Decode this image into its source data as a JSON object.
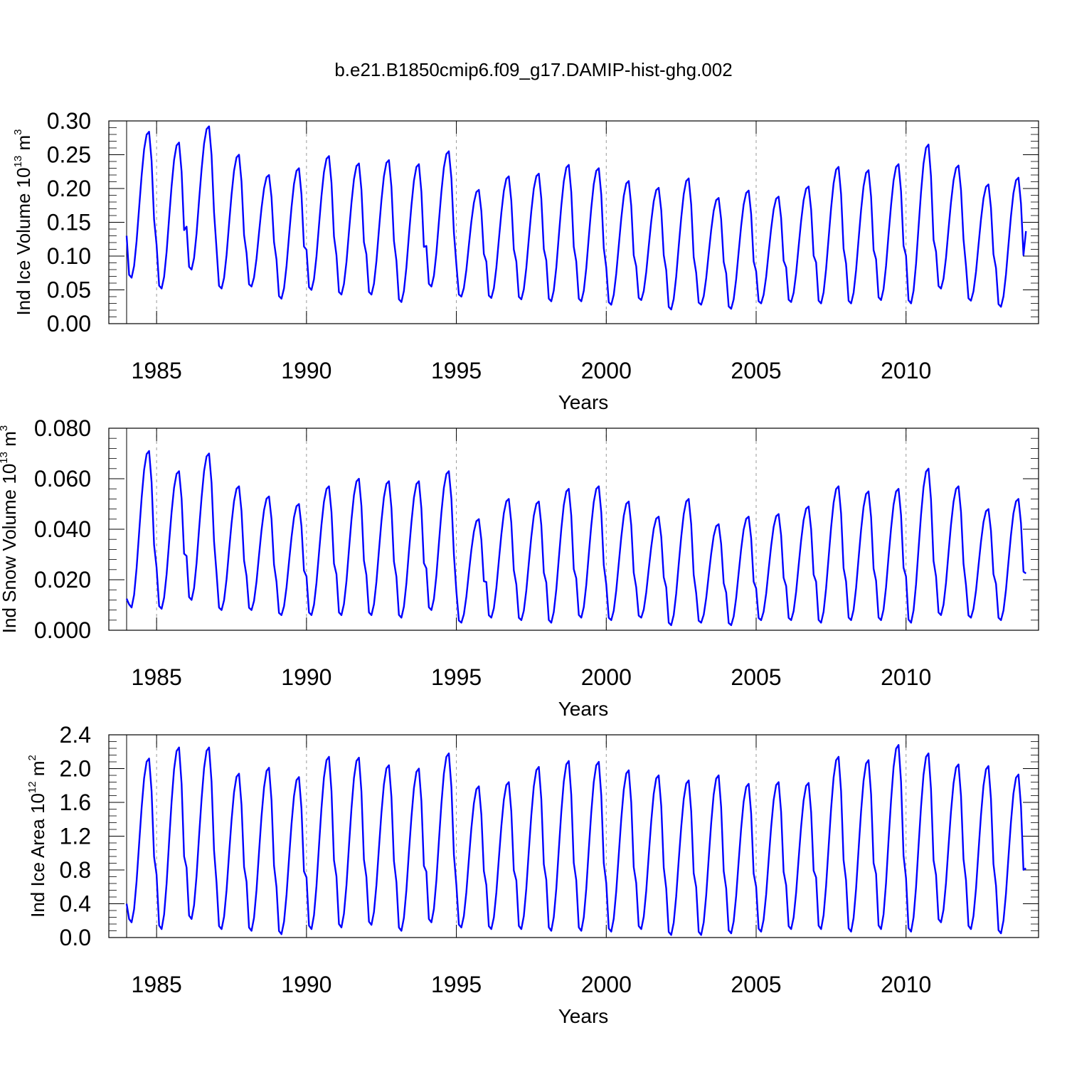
{
  "title": "b.e21.B1850cmip6.f09_g17.DAMIP-hist-ghg.002",
  "colors": {
    "line": "#0000ff",
    "axis": "#000000",
    "ref": "#999999"
  },
  "chart_data": [
    {
      "type": "line",
      "ylabel": {
        "main": "Ind Ice Volume 10",
        "exp": "13",
        "unit": " m",
        "unit_exp": "3"
      },
      "xlabel": "Years",
      "xlim": [
        1984.0,
        2014.42
      ],
      "ylim": [
        0.0,
        0.3
      ],
      "yticks": [
        0.0,
        0.05,
        0.1,
        0.15,
        0.2,
        0.25,
        0.3
      ],
      "ytick_labels": [
        "0.00",
        "0.05",
        "0.10",
        "0.15",
        "0.20",
        "0.25",
        "0.30"
      ],
      "xticks": [
        1985,
        1990,
        1995,
        2000,
        2005,
        2010
      ],
      "xtick_labels": [
        "1985",
        "1990",
        "1995",
        "2000",
        "2005",
        "2010"
      ],
      "ref_lines": [
        1985,
        1990,
        1995,
        2000,
        2005,
        2010
      ],
      "series": [
        {
          "start": 1984.0,
          "step_years": 0.08333,
          "years": [
            1984,
            1985,
            1986,
            1987,
            1988,
            1989,
            1990,
            1991,
            1992,
            1993,
            1994,
            1995,
            1996,
            1997,
            1998,
            1999,
            2000,
            2001,
            2002,
            2003,
            2004,
            2005,
            2006,
            2007,
            2008,
            2009,
            2010,
            2011,
            2012,
            2013
          ],
          "min": [
            0.068,
            0.052,
            0.08,
            0.052,
            0.055,
            0.037,
            0.05,
            0.043,
            0.043,
            0.032,
            0.055,
            0.04,
            0.038,
            0.036,
            0.033,
            0.033,
            0.028,
            0.035,
            0.021,
            0.028,
            0.022,
            0.03,
            0.032,
            0.03,
            0.03,
            0.035,
            0.03,
            0.052,
            0.034,
            0.025
          ],
          "max": [
            0.284,
            0.268,
            0.292,
            0.25,
            0.22,
            0.23,
            0.248,
            0.237,
            0.242,
            0.236,
            0.255,
            0.198,
            0.218,
            0.222,
            0.235,
            0.23,
            0.211,
            0.201,
            0.215,
            0.186,
            0.197,
            0.188,
            0.203,
            0.232,
            0.227,
            0.236,
            0.265,
            0.234,
            0.206,
            0.216
          ],
          "first": 0.13,
          "last": 0.137
        }
      ]
    },
    {
      "type": "line",
      "ylabel": {
        "main": "Ind Snow Volume 10",
        "exp": "13",
        "unit": " m",
        "unit_exp": "3"
      },
      "xlabel": "Years",
      "xlim": [
        1984.0,
        2014.42
      ],
      "ylim": [
        0.0,
        0.08
      ],
      "yticks": [
        0.0,
        0.02,
        0.04,
        0.06,
        0.08
      ],
      "ytick_labels": [
        "0.000",
        "0.020",
        "0.040",
        "0.060",
        "0.080"
      ],
      "xticks": [
        1985,
        1990,
        1995,
        2000,
        2005,
        2010
      ],
      "xtick_labels": [
        "1985",
        "1990",
        "1995",
        "2000",
        "2005",
        "2010"
      ],
      "ref_lines": [
        1985,
        1990,
        1995,
        2000,
        2005,
        2010
      ],
      "series": [
        {
          "start": 1984.0,
          "step_years": 0.08333,
          "years": [
            1984,
            1985,
            1986,
            1987,
            1988,
            1989,
            1990,
            1991,
            1992,
            1993,
            1994,
            1995,
            1996,
            1997,
            1998,
            1999,
            2000,
            2001,
            2002,
            2003,
            2004,
            2005,
            2006,
            2007,
            2008,
            2009,
            2010,
            2011,
            2012,
            2013
          ],
          "min": [
            0.009,
            0.0085,
            0.012,
            0.008,
            0.008,
            0.006,
            0.006,
            0.006,
            0.006,
            0.005,
            0.008,
            0.003,
            0.005,
            0.004,
            0.003,
            0.005,
            0.004,
            0.005,
            0.002,
            0.003,
            0.002,
            0.004,
            0.004,
            0.003,
            0.004,
            0.004,
            0.003,
            0.006,
            0.005,
            0.004
          ],
          "max": [
            0.071,
            0.063,
            0.07,
            0.057,
            0.053,
            0.05,
            0.057,
            0.06,
            0.059,
            0.059,
            0.063,
            0.044,
            0.052,
            0.051,
            0.056,
            0.057,
            0.051,
            0.045,
            0.052,
            0.042,
            0.045,
            0.046,
            0.049,
            0.057,
            0.055,
            0.056,
            0.064,
            0.057,
            0.048,
            0.052
          ],
          "first": 0.0125,
          "last": 0.0225
        }
      ]
    },
    {
      "type": "line",
      "ylabel": {
        "main": "Ind Ice Area 10",
        "exp": "12",
        "unit": " m",
        "unit_exp": "2"
      },
      "xlabel": "Years",
      "xlim": [
        1984.0,
        2014.42
      ],
      "ylim": [
        0.0,
        2.4
      ],
      "yticks": [
        0.0,
        0.4,
        0.8,
        1.2,
        1.6,
        2.0,
        2.4
      ],
      "ytick_labels": [
        "0.0",
        "0.4",
        "0.8",
        "1.2",
        "1.6",
        "2.0",
        "2.4"
      ],
      "xticks": [
        1985,
        1990,
        1995,
        2000,
        2005,
        2010
      ],
      "xtick_labels": [
        "1985",
        "1990",
        "1995",
        "2000",
        "2005",
        "2010"
      ],
      "ref_lines": [
        1985,
        1990,
        1995,
        2000,
        2005,
        2010
      ],
      "series": [
        {
          "start": 1984.0,
          "step_years": 0.08333,
          "years": [
            1984,
            1985,
            1986,
            1987,
            1988,
            1989,
            1990,
            1991,
            1992,
            1993,
            1994,
            1995,
            1996,
            1997,
            1998,
            1999,
            2000,
            2001,
            2002,
            2003,
            2004,
            2005,
            2006,
            2007,
            2008,
            2009,
            2010,
            2011,
            2012,
            2013
          ],
          "min": [
            0.18,
            0.1,
            0.22,
            0.1,
            0.08,
            0.04,
            0.1,
            0.12,
            0.15,
            0.08,
            0.18,
            0.12,
            0.1,
            0.1,
            0.08,
            0.08,
            0.07,
            0.1,
            0.03,
            0.03,
            0.05,
            0.07,
            0.1,
            0.1,
            0.07,
            0.1,
            0.07,
            0.18,
            0.1,
            0.05
          ],
          "max": [
            2.12,
            2.25,
            2.25,
            1.94,
            2.01,
            1.9,
            2.14,
            2.13,
            2.04,
            2.0,
            2.18,
            1.79,
            1.84,
            2.02,
            2.09,
            2.08,
            1.98,
            1.92,
            1.86,
            1.92,
            1.82,
            1.84,
            1.83,
            2.14,
            2.1,
            2.28,
            2.18,
            2.05,
            2.03,
            1.93
          ],
          "first": 0.4,
          "last": 0.82
        }
      ]
    }
  ]
}
